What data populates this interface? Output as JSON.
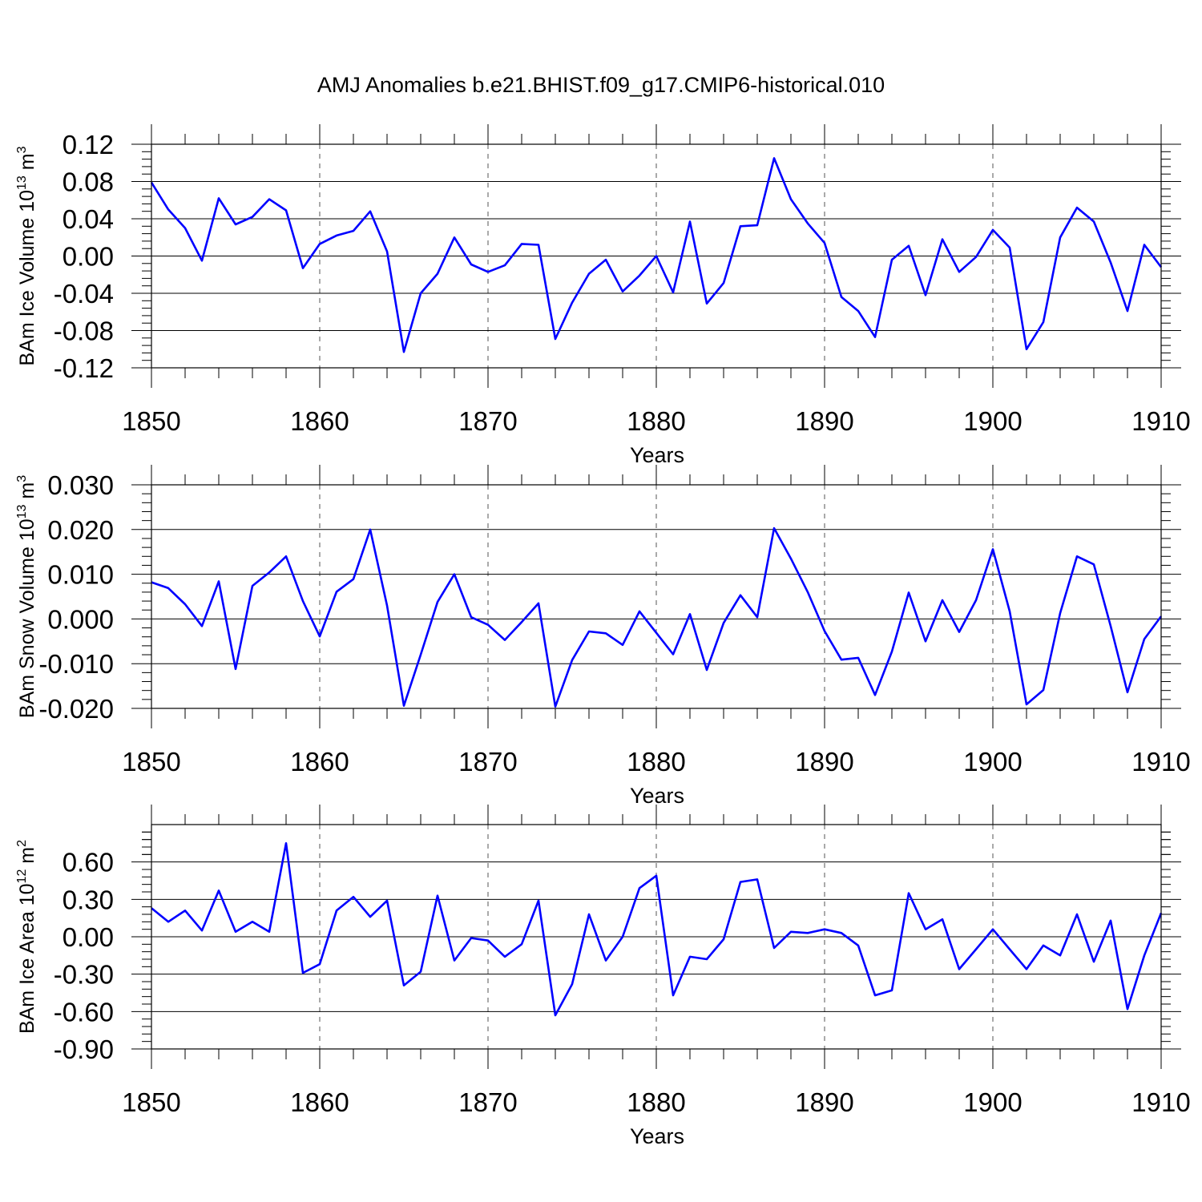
{
  "chart_data": [
    {
      "type": "line",
      "title": "AMJ Anomalies b.e21.BHIST.f09_g17.CMIP6-historical.010",
      "xlabel": "Years",
      "ylabel": "BAm Ice Volume 10",
      "ylabel_exp": "13",
      "ylabel_unit": " m",
      "ylabel_unit_exp": "3",
      "x_start": 1850,
      "x_step": 1,
      "xlim": [
        1850,
        1910
      ],
      "xticks": [
        1850,
        1860,
        1870,
        1880,
        1890,
        1900,
        1910
      ],
      "xtick_labels": [
        "1850",
        "1860",
        "1870",
        "1880",
        "1890",
        "1900",
        "1910"
      ],
      "ylim": [
        -0.12,
        0.12
      ],
      "yticks": [
        -0.12,
        -0.08,
        -0.04,
        0.0,
        0.04,
        0.08,
        0.12
      ],
      "ytick_labels": [
        "-0.12",
        "-0.08",
        "-0.04",
        "0.00",
        "0.04",
        "0.08",
        "0.12"
      ],
      "grid": "vertical dashed at major x ticks",
      "series": [
        {
          "name": "BAm Ice Volume",
          "color": "#0000ff",
          "values": [
            0.079,
            0.05,
            0.03,
            -0.005,
            0.062,
            0.034,
            0.042,
            0.061,
            0.049,
            -0.013,
            0.013,
            0.022,
            0.027,
            0.048,
            0.005,
            -0.103,
            -0.04,
            -0.019,
            0.02,
            -0.009,
            -0.017,
            -0.01,
            0.013,
            0.012,
            -0.089,
            -0.05,
            -0.019,
            -0.004,
            -0.038,
            -0.021,
            0.0,
            -0.039,
            0.037,
            -0.051,
            -0.029,
            0.032,
            0.033,
            0.105,
            0.061,
            0.035,
            0.014,
            -0.044,
            -0.059,
            -0.087,
            -0.004,
            0.011,
            -0.042,
            0.018,
            -0.017,
            -0.001,
            0.028,
            0.009,
            -0.1,
            -0.071,
            0.02,
            0.052,
            0.037,
            -0.007,
            -0.059,
            0.012,
            -0.012
          ]
        }
      ]
    },
    {
      "type": "line",
      "xlabel": "Years",
      "ylabel": "BAm Snow Volume 10",
      "ylabel_exp": "13",
      "ylabel_unit": " m",
      "ylabel_unit_exp": "3",
      "x_start": 1850,
      "x_step": 1,
      "xlim": [
        1850,
        1910
      ],
      "xticks": [
        1850,
        1860,
        1870,
        1880,
        1890,
        1900,
        1910
      ],
      "xtick_labels": [
        "1850",
        "1860",
        "1870",
        "1880",
        "1890",
        "1900",
        "1910"
      ],
      "ylim": [
        -0.02,
        0.03
      ],
      "yticks": [
        -0.02,
        -0.01,
        0.0,
        0.01,
        0.02,
        0.03
      ],
      "ytick_labels": [
        "-0.020",
        "-0.010",
        "0.000",
        "0.010",
        "0.020",
        "0.030"
      ],
      "grid": "vertical dashed at major x ticks",
      "series": [
        {
          "name": "BAm Snow Volume",
          "color": "#0000ff",
          "values": [
            0.0082,
            0.0069,
            0.0033,
            -0.0016,
            0.0084,
            -0.0112,
            0.0074,
            0.0104,
            0.014,
            0.004,
            -0.0039,
            0.0061,
            0.0089,
            0.02,
            0.003,
            -0.0194,
            -0.008,
            0.0038,
            0.01,
            0.0004,
            -0.0013,
            -0.0047,
            -0.0007,
            0.0035,
            -0.0196,
            -0.0092,
            -0.0028,
            -0.0032,
            -0.0058,
            0.0017,
            -0.0031,
            -0.0079,
            0.0011,
            -0.0114,
            -0.0009,
            0.0053,
            0.0004,
            0.0203,
            0.0135,
            0.006,
            -0.0027,
            -0.0091,
            -0.0087,
            -0.017,
            -0.0073,
            0.0059,
            -0.005,
            0.0042,
            -0.0029,
            0.0042,
            0.0156,
            0.0017,
            -0.0191,
            -0.0159,
            0.0013,
            0.014,
            0.0122,
            -0.0016,
            -0.0164,
            -0.0045,
            0.0006
          ]
        }
      ]
    },
    {
      "type": "line",
      "xlabel": "Years",
      "ylabel": "BAm Ice Area 10",
      "ylabel_exp": "12",
      "ylabel_unit": " m",
      "ylabel_unit_exp": "2",
      "x_start": 1850,
      "x_step": 1,
      "xlim": [
        1850,
        1910
      ],
      "xticks": [
        1850,
        1860,
        1870,
        1880,
        1890,
        1900,
        1910
      ],
      "xtick_labels": [
        "1850",
        "1860",
        "1870",
        "1880",
        "1890",
        "1900",
        "1910"
      ],
      "ylim": [
        -0.9,
        0.9
      ],
      "yticks": [
        -0.9,
        -0.6,
        -0.3,
        0.0,
        0.3,
        0.6
      ],
      "ytick_labels": [
        "-0.90",
        "-0.60",
        "-0.30",
        "0.00",
        "0.30",
        "0.60"
      ],
      "grid": "vertical dashed at major x ticks",
      "series": [
        {
          "name": "BAm Ice Area",
          "color": "#0000ff",
          "values": [
            0.23,
            0.12,
            0.21,
            0.05,
            0.37,
            0.04,
            0.12,
            0.04,
            0.75,
            -0.29,
            -0.22,
            0.21,
            0.32,
            0.16,
            0.29,
            -0.39,
            -0.28,
            0.33,
            -0.19,
            -0.01,
            -0.03,
            -0.16,
            -0.06,
            0.29,
            -0.63,
            -0.38,
            0.18,
            -0.19,
            0.0,
            0.39,
            0.49,
            -0.47,
            -0.16,
            -0.18,
            -0.02,
            0.44,
            0.46,
            -0.09,
            0.04,
            0.03,
            0.06,
            0.03,
            -0.07,
            -0.47,
            -0.43,
            0.35,
            0.06,
            0.14,
            -0.26,
            -0.1,
            0.06,
            -0.1,
            -0.26,
            -0.07,
            -0.15,
            0.18,
            -0.2,
            0.13,
            -0.58,
            -0.15,
            0.19
          ]
        }
      ]
    }
  ]
}
